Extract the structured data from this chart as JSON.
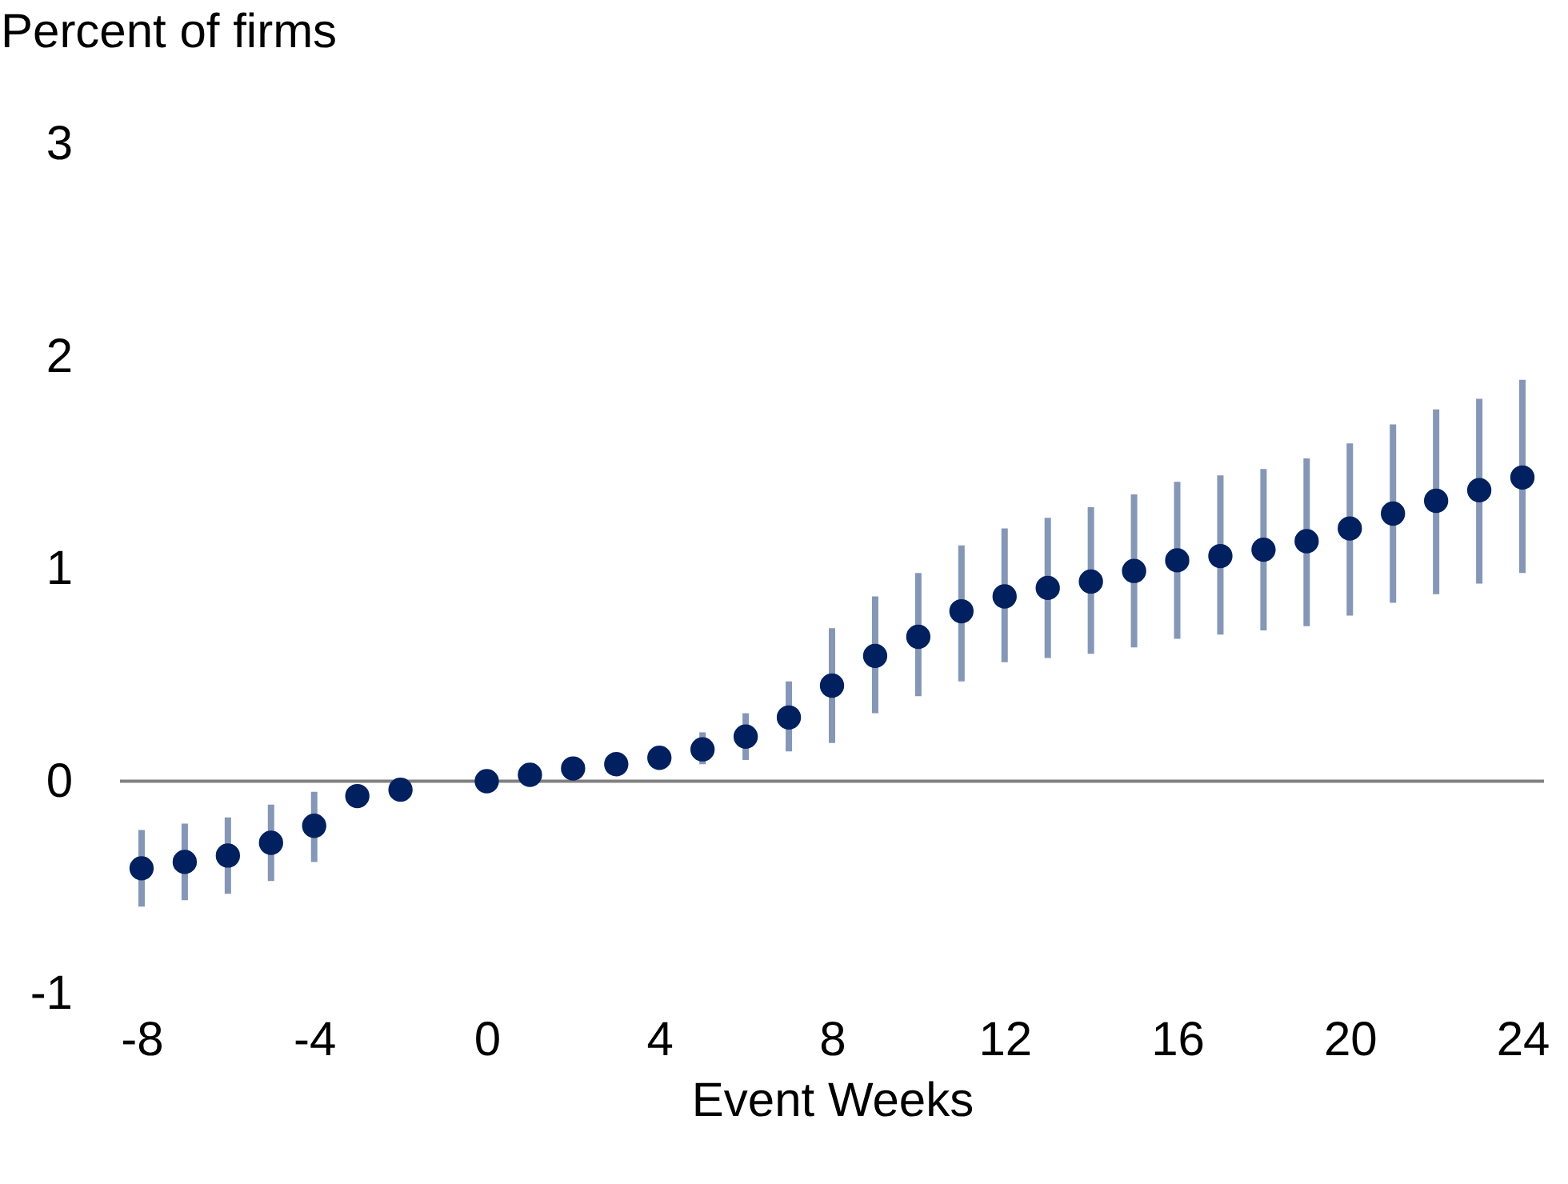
{
  "chart_data": {
    "type": "scatter",
    "xlabel": "Event Weeks",
    "ylabel": "Percent of firms",
    "x": [
      -8,
      -7,
      -6,
      -5,
      -4,
      -3,
      -2,
      -1,
      0,
      1,
      2,
      3,
      4,
      5,
      6,
      7,
      8,
      9,
      10,
      11,
      12,
      13,
      14,
      15,
      16,
      17,
      18,
      19,
      20,
      21,
      22,
      23,
      24
    ],
    "series": [
      {
        "color": "#002060",
        "values": [
          -0.41,
          -0.38,
          -0.35,
          -0.29,
          -0.21,
          -0.07,
          -0.04,
          null,
          0,
          0.03,
          0.06,
          0.08,
          0.11,
          0.15,
          0.21,
          0.3,
          0.45,
          0.59,
          0.68,
          0.8,
          0.87,
          0.91,
          0.94,
          0.99,
          1.04,
          1.06,
          1.09,
          1.13,
          1.19,
          1.26,
          1.32,
          1.37,
          1.43
        ],
        "errors": [
          [
            -0.59,
            -0.23
          ],
          [
            -0.56,
            -0.2
          ],
          [
            -0.53,
            -0.17
          ],
          [
            -0.47,
            -0.11
          ],
          [
            -0.38,
            -0.05
          ],
          null,
          null,
          null,
          null,
          null,
          null,
          null,
          null,
          [
            0.08,
            0.23
          ],
          [
            0.1,
            0.32
          ],
          [
            0.14,
            0.47
          ],
          [
            0.18,
            0.72
          ],
          [
            0.32,
            0.87
          ],
          [
            0.4,
            0.98
          ],
          [
            0.47,
            1.11
          ],
          [
            0.56,
            1.19
          ],
          [
            0.58,
            1.24
          ],
          [
            0.6,
            1.29
          ],
          [
            0.63,
            1.35
          ],
          [
            0.67,
            1.41
          ],
          [
            0.69,
            1.44
          ],
          [
            0.71,
            1.47
          ],
          [
            0.73,
            1.52
          ],
          [
            0.78,
            1.59
          ],
          [
            0.84,
            1.68
          ],
          [
            0.88,
            1.75
          ],
          [
            0.93,
            1.8
          ],
          [
            0.98,
            1.89
          ]
        ]
      }
    ],
    "xlim": [
      -8.5,
      24.5
    ],
    "xticks": [
      -8,
      -4,
      0,
      4,
      8,
      12,
      16,
      20,
      24
    ],
    "ylim": [
      -1,
      3
    ],
    "yticks": [
      -1,
      0,
      1,
      2,
      3
    ],
    "ref_lines": [
      {
        "axis": "y",
        "value": 0,
        "color": "#808080"
      }
    ],
    "marker": "circle",
    "grid": false
  }
}
